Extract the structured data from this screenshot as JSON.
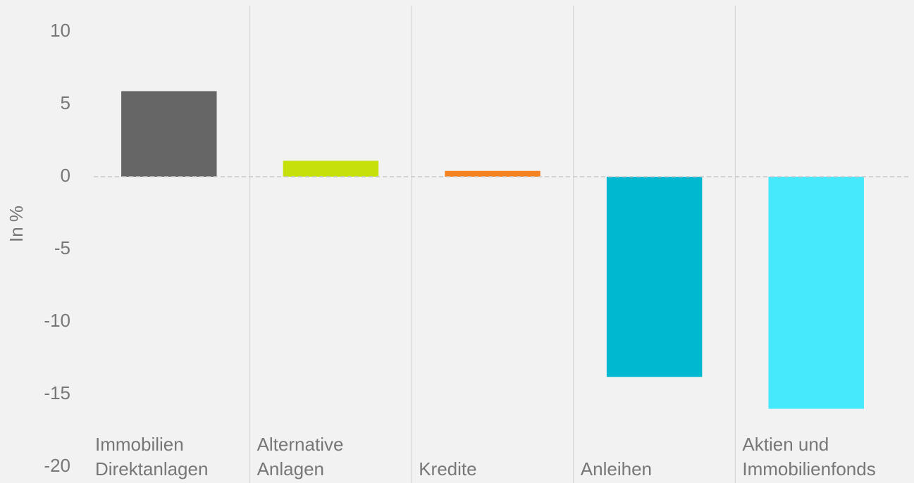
{
  "chart_data": {
    "type": "bar",
    "y_label": "In %",
    "categories": [
      "Immobilien\nDirektanlagen",
      "Alternative\nAnlagen",
      "Kredite",
      "Anleihen",
      "Aktien und\nImmobilienfonds"
    ],
    "values": [
      5.9,
      1.1,
      0.4,
      -13.8,
      -16.0
    ],
    "colors": [
      "#666666",
      "#c5e00b",
      "#f58220",
      "#00b8d0",
      "#46e8fb"
    ],
    "ylim": [
      -20,
      10
    ],
    "yticks": [
      -20,
      -15,
      -10,
      -5,
      0,
      5,
      10
    ],
    "grid": false
  }
}
